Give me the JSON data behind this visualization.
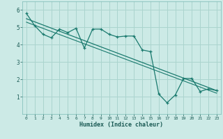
{
  "xlabel": "Humidex (Indice chaleur)",
  "background_color": "#cceae6",
  "grid_color": "#aad4ce",
  "line_color": "#1a7a6e",
  "xlim": [
    -0.5,
    23.5
  ],
  "ylim": [
    0.0,
    6.5
  ],
  "xticks": [
    0,
    1,
    2,
    3,
    4,
    5,
    6,
    7,
    8,
    9,
    10,
    11,
    12,
    13,
    14,
    15,
    16,
    17,
    18,
    19,
    20,
    21,
    22,
    23
  ],
  "yticks": [
    1,
    2,
    3,
    4,
    5,
    6
  ],
  "series1_x": [
    0,
    1,
    2,
    3,
    4,
    5,
    6,
    7,
    8,
    9,
    10,
    11,
    12,
    13,
    14,
    15,
    16,
    17,
    18,
    19,
    20,
    21,
    22,
    23
  ],
  "series1_y": [
    5.8,
    5.1,
    4.6,
    4.4,
    4.9,
    4.7,
    4.95,
    3.8,
    4.9,
    4.9,
    4.6,
    4.45,
    4.5,
    4.5,
    3.7,
    3.6,
    1.15,
    0.65,
    1.1,
    2.05,
    2.05,
    1.3,
    1.45,
    1.35
  ],
  "series2_x": [
    0,
    23
  ],
  "series2_y": [
    5.5,
    1.35
  ],
  "series3_x": [
    0,
    23
  ],
  "series3_y": [
    5.3,
    1.2
  ]
}
